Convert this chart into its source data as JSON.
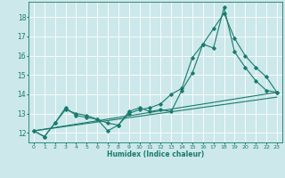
{
  "title": "",
  "xlabel": "Humidex (Indice chaleur)",
  "ylabel": "",
  "bg_color": "#cce8ea",
  "grid_color": "#ffffff",
  "line_color": "#1a7a6e",
  "xlim": [
    -0.5,
    23.5
  ],
  "ylim": [
    11.5,
    18.8
  ],
  "yticks": [
    12,
    13,
    14,
    15,
    16,
    17,
    18
  ],
  "series1_x": [
    0,
    1,
    2,
    3,
    4,
    5,
    6,
    7,
    8,
    9,
    10,
    11,
    12,
    13,
    14,
    15,
    16,
    17,
    18,
    19,
    20,
    21,
    22,
    23
  ],
  "series1_y": [
    12.1,
    11.8,
    12.5,
    13.3,
    12.9,
    12.8,
    12.7,
    12.1,
    12.4,
    13.1,
    13.3,
    13.1,
    13.2,
    13.1,
    14.2,
    15.1,
    16.6,
    16.4,
    18.5,
    16.2,
    15.4,
    14.7,
    14.2,
    14.1
  ],
  "series2_x": [
    0,
    1,
    2,
    3,
    4,
    5,
    6,
    7,
    8,
    9,
    10,
    11,
    12,
    13,
    14,
    15,
    16,
    17,
    18,
    19,
    20,
    21,
    22,
    23
  ],
  "series2_y": [
    12.1,
    11.8,
    12.5,
    13.2,
    13.0,
    12.9,
    12.7,
    12.5,
    12.4,
    13.0,
    13.2,
    13.3,
    13.5,
    14.0,
    14.3,
    15.9,
    16.6,
    17.4,
    18.2,
    16.9,
    16.0,
    15.4,
    14.9,
    14.1
  ],
  "series3_x": [
    0,
    23
  ],
  "series3_y": [
    12.1,
    14.1
  ],
  "series4_x": [
    0,
    23
  ],
  "series4_y": [
    12.1,
    13.85
  ]
}
